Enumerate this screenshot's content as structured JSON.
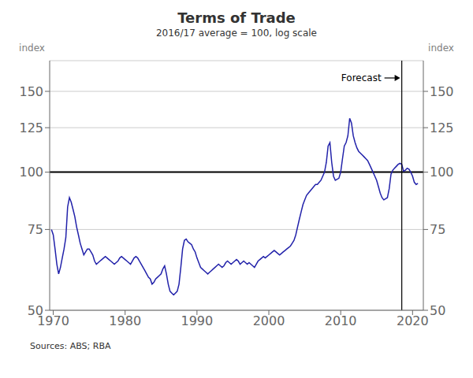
{
  "chart_data": {
    "type": "line",
    "title": "Terms of Trade",
    "subtitle": "2016/17 average = 100, log scale",
    "source": "Sources: ABS; RBA",
    "ylabel": "index",
    "y2label": "index",
    "log": "y",
    "grid": "y",
    "color": "#2222aa",
    "xlim": [
      1969.5,
      2021.5
    ],
    "xticks": [
      1970,
      1980,
      1990,
      2000,
      2010,
      2020
    ],
    "ylim": [
      50,
      175
    ],
    "yticks": [
      50,
      75,
      100,
      125,
      150
    ],
    "y2lim": [
      50,
      175
    ],
    "y2ticks": [
      50,
      75,
      100,
      125,
      150
    ],
    "reference_lines": [
      {
        "axis": "y",
        "value": 100
      }
    ],
    "annotations": [
      {
        "text": "Forecast",
        "x": 2018.5
      }
    ],
    "x": [
      1969.75,
      1970.0,
      1970.25,
      1970.5,
      1970.75,
      1971.0,
      1971.25,
      1971.5,
      1971.75,
      1972.0,
      1972.25,
      1972.5,
      1972.75,
      1973.0,
      1973.25,
      1973.5,
      1973.75,
      1974.0,
      1974.25,
      1974.5,
      1974.75,
      1975.0,
      1975.25,
      1975.5,
      1975.75,
      1976.0,
      1976.25,
      1976.5,
      1976.75,
      1977.0,
      1977.25,
      1977.5,
      1977.75,
      1978.0,
      1978.25,
      1978.5,
      1978.75,
      1979.0,
      1979.25,
      1979.5,
      1979.75,
      1980.0,
      1980.25,
      1980.5,
      1980.75,
      1981.0,
      1981.25,
      1981.5,
      1981.75,
      1982.0,
      1982.25,
      1982.5,
      1982.75,
      1983.0,
      1983.25,
      1983.5,
      1983.75,
      1984.0,
      1984.25,
      1984.5,
      1984.75,
      1985.0,
      1985.25,
      1985.5,
      1985.75,
      1986.0,
      1986.25,
      1986.5,
      1986.75,
      1987.0,
      1987.25,
      1987.5,
      1987.75,
      1988.0,
      1988.25,
      1988.5,
      1988.75,
      1989.0,
      1989.25,
      1989.5,
      1989.75,
      1990.0,
      1990.25,
      1990.5,
      1990.75,
      1991.0,
      1991.25,
      1991.5,
      1991.75,
      1992.0,
      1992.25,
      1992.5,
      1992.75,
      1993.0,
      1993.25,
      1993.5,
      1993.75,
      1994.0,
      1994.25,
      1994.5,
      1994.75,
      1995.0,
      1995.25,
      1995.5,
      1995.75,
      1996.0,
      1996.25,
      1996.5,
      1996.75,
      1997.0,
      1997.25,
      1997.5,
      1997.75,
      1998.0,
      1998.25,
      1998.5,
      1998.75,
      1999.0,
      1999.25,
      1999.5,
      1999.75,
      2000.0,
      2000.25,
      2000.5,
      2000.75,
      2001.0,
      2001.25,
      2001.5,
      2001.75,
      2002.0,
      2002.25,
      2002.5,
      2002.75,
      2003.0,
      2003.25,
      2003.5,
      2003.75,
      2004.0,
      2004.25,
      2004.5,
      2004.75,
      2005.0,
      2005.25,
      2005.5,
      2005.75,
      2006.0,
      2006.25,
      2006.5,
      2006.75,
      2007.0,
      2007.25,
      2007.5,
      2007.75,
      2008.0,
      2008.25,
      2008.5,
      2008.75,
      2009.0,
      2009.25,
      2009.5,
      2009.75,
      2010.0,
      2010.25,
      2010.5,
      2010.75,
      2011.0,
      2011.25,
      2011.5,
      2011.75,
      2012.0,
      2012.25,
      2012.5,
      2012.75,
      2013.0,
      2013.25,
      2013.5,
      2013.75,
      2014.0,
      2014.25,
      2014.5,
      2014.75,
      2015.0,
      2015.25,
      2015.5,
      2015.75,
      2016.0,
      2016.25,
      2016.5,
      2016.75,
      2017.0,
      2017.25,
      2017.5,
      2017.75,
      2018.0,
      2018.25,
      2018.5,
      2018.75,
      2019.0,
      2019.25,
      2019.5,
      2019.75,
      2020.0,
      2020.25,
      2020.5,
      2020.75
    ],
    "values": [
      75.0,
      73.0,
      68.0,
      63.0,
      60.0,
      62.0,
      65.0,
      68.0,
      72.0,
      84.0,
      88.0,
      86.0,
      83.0,
      80.0,
      76.0,
      73.0,
      70.0,
      68.0,
      66.0,
      67.0,
      68.0,
      68.0,
      67.0,
      66.0,
      64.0,
      63.0,
      63.5,
      64.0,
      64.5,
      65.0,
      65.5,
      65.0,
      64.5,
      64.0,
      63.5,
      63.0,
      63.5,
      64.0,
      65.0,
      65.5,
      65.0,
      64.5,
      64.0,
      63.5,
      63.0,
      64.0,
      65.0,
      65.5,
      65.0,
      64.0,
      63.0,
      62.0,
      61.0,
      60.0,
      59.0,
      58.5,
      57.0,
      57.5,
      58.5,
      59.0,
      59.5,
      60.0,
      61.5,
      62.5,
      60.0,
      57.0,
      55.0,
      54.5,
      54.0,
      54.5,
      55.0,
      57.0,
      62.0,
      68.0,
      71.0,
      71.5,
      70.5,
      70.0,
      69.5,
      68.0,
      67.0,
      65.0,
      63.5,
      62.0,
      61.5,
      61.0,
      60.5,
      60.0,
      60.5,
      61.0,
      61.5,
      62.0,
      62.5,
      63.0,
      62.5,
      62.0,
      62.5,
      63.5,
      64.0,
      63.5,
      63.0,
      63.5,
      64.0,
      64.5,
      64.0,
      63.0,
      63.5,
      64.0,
      63.5,
      63.0,
      63.5,
      63.0,
      62.5,
      62.0,
      63.0,
      64.0,
      64.5,
      65.0,
      65.5,
      65.0,
      65.5,
      66.0,
      66.5,
      67.0,
      67.5,
      67.0,
      66.5,
      66.0,
      66.5,
      67.0,
      67.5,
      68.0,
      68.5,
      69.0,
      70.0,
      71.0,
      73.0,
      76.0,
      79.0,
      82.0,
      85.0,
      87.0,
      89.0,
      90.0,
      91.0,
      92.0,
      93.0,
      94.0,
      94.0,
      95.0,
      96.0,
      98.0,
      100.0,
      105.0,
      114.0,
      116.0,
      105.0,
      98.0,
      96.0,
      96.5,
      97.0,
      100.0,
      107.0,
      114.0,
      116.0,
      120.0,
      131.0,
      128.0,
      120.0,
      116.0,
      113.0,
      111.0,
      110.0,
      109.0,
      108.0,
      107.0,
      106.0,
      104.0,
      102.0,
      100.0,
      98.0,
      96.0,
      93.0,
      90.0,
      88.0,
      87.0,
      87.5,
      88.0,
      92.0,
      99.0,
      101.0,
      102.0,
      103.0,
      104.0,
      104.5,
      104.0,
      100.5,
      101.0,
      102.0,
      101.5,
      100.0,
      98.0,
      95.0,
      94.0,
      94.5
    ]
  }
}
